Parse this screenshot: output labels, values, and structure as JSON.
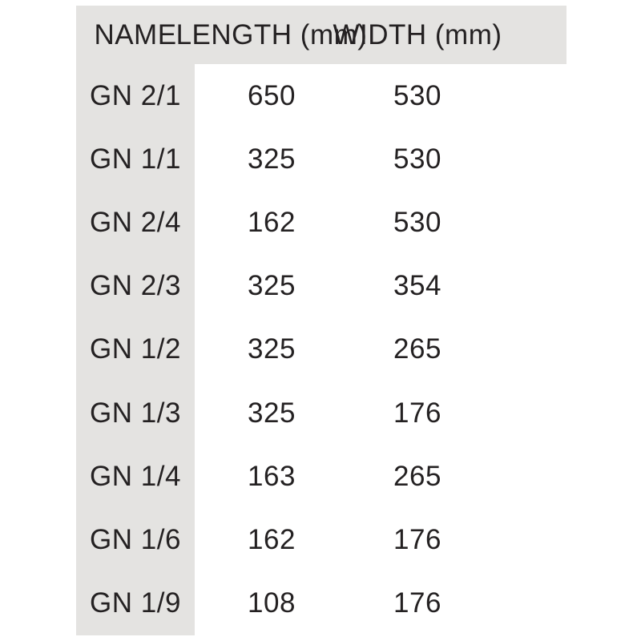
{
  "page": {
    "background": "#ffffff"
  },
  "colors": {
    "header_bg": "#e4e3e1",
    "name_column_bg": "#e4e3e1",
    "text": "#242122"
  },
  "table": {
    "columns": {
      "name": "NAME",
      "length": "LENGTH (mm)",
      "width": "WIDTH (mm)"
    },
    "rows": [
      {
        "name": "GN 2/1",
        "length": "650",
        "width": "530"
      },
      {
        "name": "GN 1/1",
        "length": "325",
        "width": "530"
      },
      {
        "name": "GN 2/4",
        "length": "162",
        "width": "530"
      },
      {
        "name": "GN 2/3",
        "length": "325",
        "width": "354"
      },
      {
        "name": "GN 1/2",
        "length": "325",
        "width": "265"
      },
      {
        "name": "GN 1/3",
        "length": "325",
        "width": "176"
      },
      {
        "name": "GN 1/4",
        "length": "163",
        "width": "265"
      },
      {
        "name": "GN 1/6",
        "length": "162",
        "width": "176"
      },
      {
        "name": "GN 1/9",
        "length": "108",
        "width": "176"
      }
    ]
  },
  "chart_data": {
    "type": "table",
    "title": "",
    "columns": [
      "NAME",
      "LENGTH (mm)",
      "WIDTH (mm)"
    ],
    "rows": [
      [
        "GN 2/1",
        650,
        530
      ],
      [
        "GN 1/1",
        325,
        530
      ],
      [
        "GN 2/4",
        162,
        530
      ],
      [
        "GN 2/3",
        325,
        354
      ],
      [
        "GN 1/2",
        325,
        265
      ],
      [
        "GN 1/3",
        325,
        176
      ],
      [
        "GN 1/4",
        163,
        265
      ],
      [
        "GN 1/6",
        162,
        176
      ],
      [
        "GN 1/9",
        108,
        176
      ]
    ]
  }
}
